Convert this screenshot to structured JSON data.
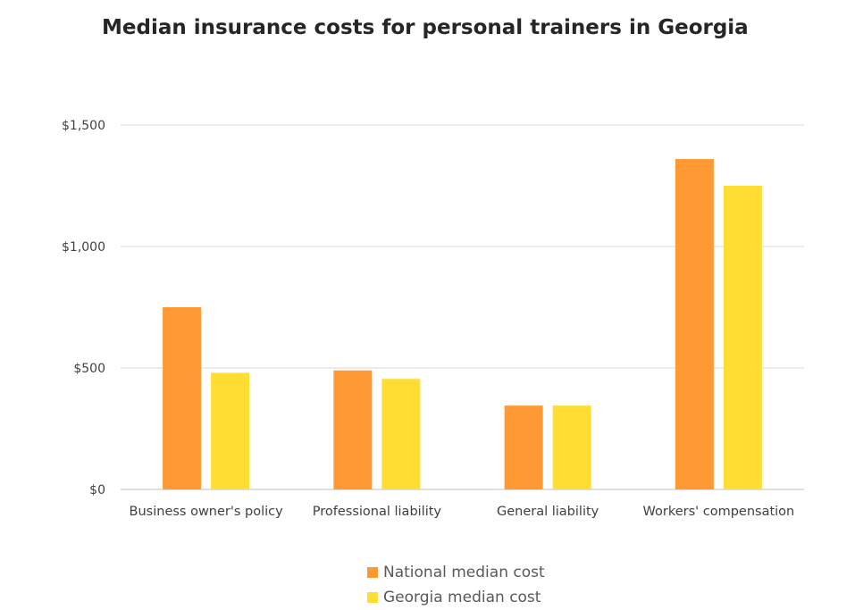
{
  "chart_data": {
    "type": "bar",
    "title": "Median insurance costs for personal trainers in Georgia",
    "categories": [
      "Business owner's policy",
      "Professional liability",
      "General liability",
      "Workers' compensation"
    ],
    "series": [
      {
        "name": "National median cost",
        "color": "#FF9933",
        "values": [
          750,
          490,
          345,
          1360
        ]
      },
      {
        "name": "Georgia median cost",
        "color": "#FFDD33",
        "values": [
          480,
          455,
          345,
          1250
        ]
      }
    ],
    "ylim": [
      0,
      1500
    ],
    "yticks": [
      0,
      500,
      1000,
      1500
    ],
    "ytick_labels": [
      "$0",
      "$500",
      "$1,000",
      "$1,500"
    ],
    "grid": true,
    "legend": "bottom"
  }
}
